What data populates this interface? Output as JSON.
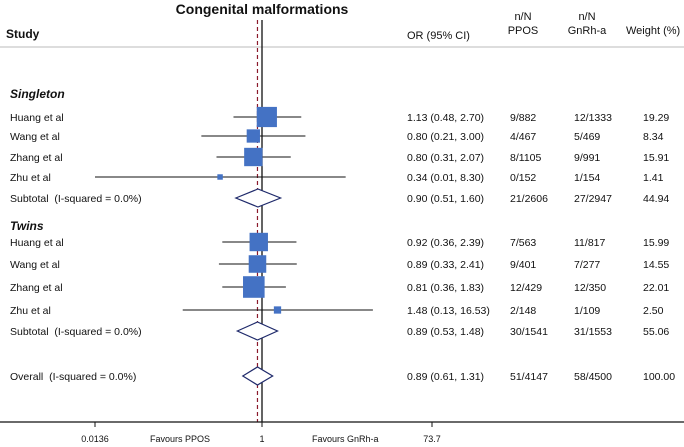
{
  "chart_data": {
    "type": "forest",
    "title": "Congenital malformations",
    "columns": {
      "study": "Study",
      "or": "OR (95% CI)",
      "ppos_line1": "n/N",
      "ppos_line2": "PPOS",
      "gnrh_line1": "n/N",
      "gnrh_line2": "GnRh-a",
      "weight": "Weight (%)"
    },
    "axis": {
      "scale": "log",
      "range": [
        0.0136,
        73.7
      ],
      "ticks": [
        "0.0136",
        "1",
        "73.7"
      ],
      "null_value": 1,
      "left_label": "Favours PPOS",
      "right_label": "Favours GnRh-a"
    },
    "overall_line": 0.89,
    "colors": {
      "box": "#4472c4",
      "diamond": "#1f2a6b",
      "dashed": "#8b1a2b"
    },
    "rows": [
      {
        "kind": "group",
        "label": "Singleton"
      },
      {
        "kind": "study",
        "label": "Huang et al",
        "or": 1.13,
        "lo": 0.48,
        "hi": 2.7,
        "text": "1.13 (0.48, 2.70)",
        "ppos": "9/882",
        "gnrh": "12/1333",
        "weight": "19.29"
      },
      {
        "kind": "study",
        "label": "Wang et al",
        "or": 0.8,
        "lo": 0.21,
        "hi": 3.0,
        "text": "0.80 (0.21, 3.00)",
        "ppos": "4/467",
        "gnrh": "5/469",
        "weight": "8.34"
      },
      {
        "kind": "study",
        "label": "Zhang et al",
        "or": 0.8,
        "lo": 0.31,
        "hi": 2.07,
        "text": "0.80 (0.31, 2.07)",
        "ppos": "8/1105",
        "gnrh": "9/991",
        "weight": "15.91"
      },
      {
        "kind": "study",
        "label": "Zhu et al",
        "or": 0.34,
        "lo": 0.01,
        "hi": 8.3,
        "text": "0.34 (0.01, 8.30)",
        "ppos": "0/152",
        "gnrh": "1/154",
        "weight": "1.41"
      },
      {
        "kind": "subtotal",
        "label": "Subtotal  (I-squared = 0.0%)",
        "or": 0.9,
        "lo": 0.51,
        "hi": 1.6,
        "text": "0.90 (0.51, 1.60)",
        "ppos": "21/2606",
        "gnrh": "27/2947",
        "weight": "44.94"
      },
      {
        "kind": "group",
        "label": "Twins"
      },
      {
        "kind": "study",
        "label": "Huang et al",
        "or": 0.92,
        "lo": 0.36,
        "hi": 2.39,
        "text": "0.92 (0.36, 2.39)",
        "ppos": "7/563",
        "gnrh": "11/817",
        "weight": "15.99"
      },
      {
        "kind": "study",
        "label": "Wang et al",
        "or": 0.89,
        "lo": 0.33,
        "hi": 2.41,
        "text": "0.89 (0.33, 2.41)",
        "ppos": "9/401",
        "gnrh": "7/277",
        "weight": "14.55"
      },
      {
        "kind": "study",
        "label": "Zhang et al",
        "or": 0.81,
        "lo": 0.36,
        "hi": 1.83,
        "text": "0.81 (0.36, 1.83)",
        "ppos": "12/429",
        "gnrh": "12/350",
        "weight": "22.01"
      },
      {
        "kind": "study",
        "label": "Zhu et al",
        "or": 1.48,
        "lo": 0.13,
        "hi": 16.53,
        "text": "1.48 (0.13, 16.53)",
        "ppos": "2/148",
        "gnrh": "1/109",
        "weight": "2.50"
      },
      {
        "kind": "subtotal",
        "label": "Subtotal  (I-squared = 0.0%)",
        "or": 0.89,
        "lo": 0.53,
        "hi": 1.48,
        "text": "0.89 (0.53, 1.48)",
        "ppos": "30/1541",
        "gnrh": "31/1553",
        "weight": "55.06"
      },
      {
        "kind": "overall",
        "label": "Overall  (I-squared = 0.0%)",
        "or": 0.89,
        "lo": 0.61,
        "hi": 1.31,
        "text": "0.89 (0.61, 1.31)",
        "ppos": "51/4147",
        "gnrh": "58/4500",
        "weight": "100.00"
      }
    ]
  }
}
